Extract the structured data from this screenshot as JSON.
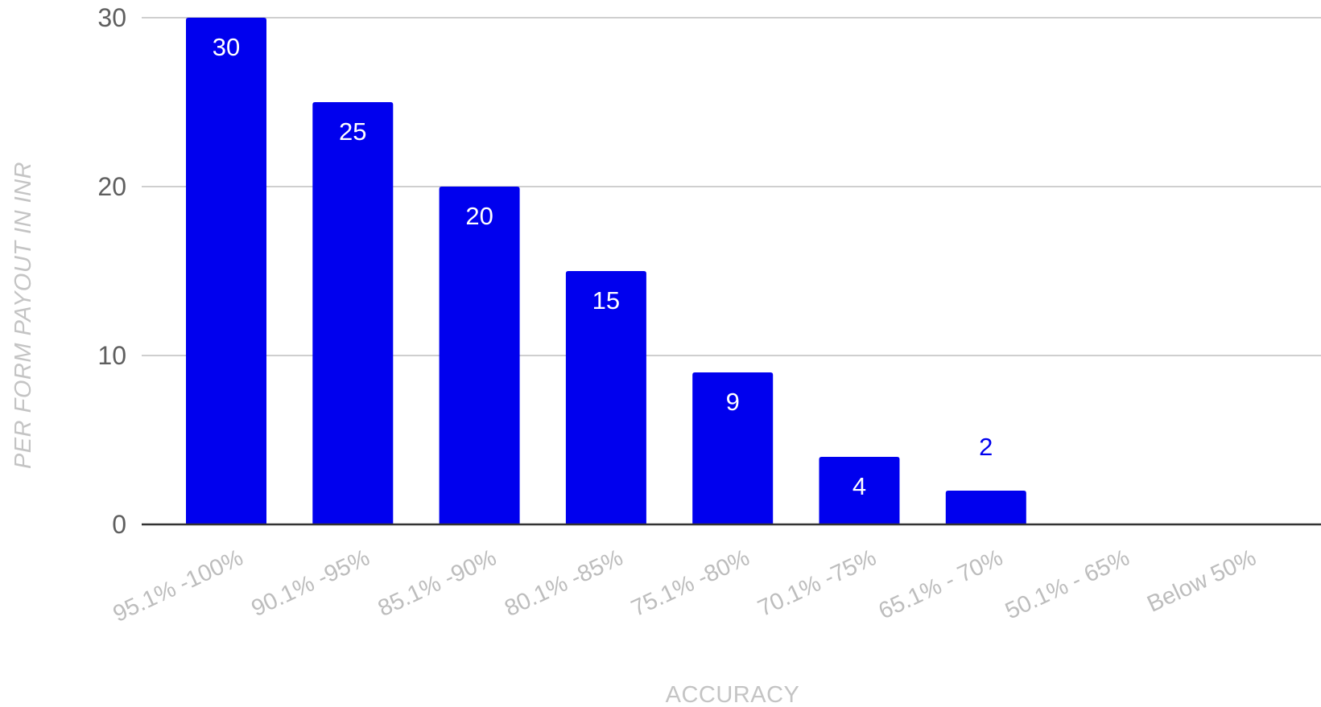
{
  "chart_data": {
    "type": "bar",
    "categories": [
      "95.1% -100%",
      "90.1% -95%",
      "85.1% -90%",
      "80.1% -85%",
      "75.1% -80%",
      "70.1% -75%",
      "65.1% - 70%",
      "50.1% - 65%",
      "Below 50%"
    ],
    "values": [
      30,
      25,
      20,
      15,
      9,
      4,
      2,
      0,
      0
    ],
    "data_labels": [
      "30",
      "25",
      "20",
      "15",
      "9",
      "4",
      "2",
      "",
      ""
    ],
    "xlabel": "ACCURACY",
    "ylabel": "PER FORM PAYOUT IN INR",
    "ylim": [
      0,
      30
    ],
    "yticks": [
      0,
      10,
      20,
      30
    ],
    "grid": true,
    "legend": "none",
    "colors": {
      "bar": "#0000ee",
      "label_inside": "#ffffff",
      "label_outside": "#0000ee"
    }
  }
}
